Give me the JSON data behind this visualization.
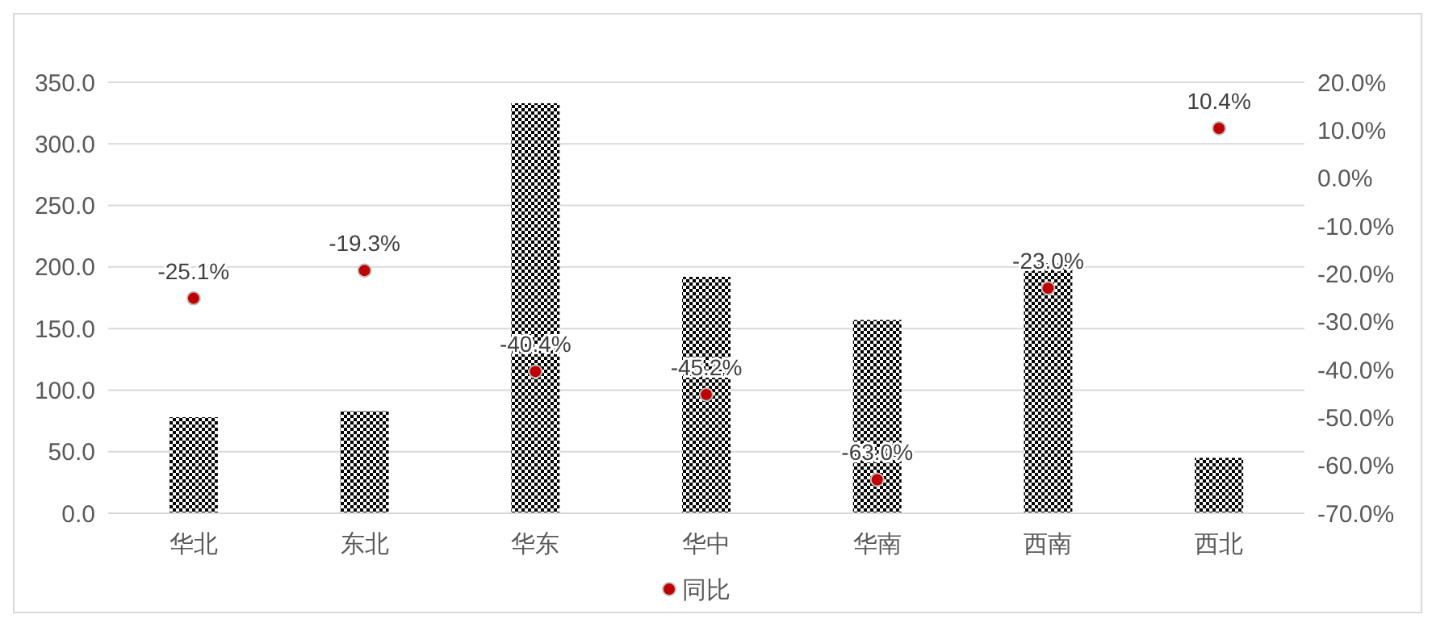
{
  "chart_data": {
    "type": "bar",
    "categories": [
      "华北",
      "东北",
      "华东",
      "华中",
      "华南",
      "西南",
      "西北"
    ],
    "series": [
      {
        "color": "#000000",
        "values": [
          78,
          83,
          333,
          192,
          157,
          203,
          45
        ]
      },
      {
        "type": "scatter",
        "name": "同比",
        "color": "#c00000",
        "axis": "y2",
        "values": [
          -25.1,
          -19.3,
          -40.4,
          -45.2,
          -63.0,
          -23.0,
          10.4
        ],
        "value_labels": [
          "-25.1%",
          "-19.3%",
          "-40.4%",
          "-45.2%",
          "-63.0%",
          "-23.0%",
          "10.4%"
        ]
      }
    ],
    "ylim": [
      0,
      350
    ],
    "yticks": [
      {
        "value": 0,
        "label": "0.0"
      },
      {
        "value": 50,
        "label": "50.0"
      },
      {
        "value": 100,
        "label": "100.0"
      },
      {
        "value": 150,
        "label": "150.0"
      },
      {
        "value": 200,
        "label": "200.0"
      },
      {
        "value": 250,
        "label": "250.0"
      },
      {
        "value": 300,
        "label": "300.0"
      },
      {
        "value": 350,
        "label": "350.0"
      }
    ],
    "y2lim": [
      -70,
      20
    ],
    "y2ticks": [
      {
        "value": -70,
        "label": "-70.0%"
      },
      {
        "value": -60,
        "label": "-60.0%"
      },
      {
        "value": -50,
        "label": "-50.0%"
      },
      {
        "value": -40,
        "label": "-40.0%"
      },
      {
        "value": -30,
        "label": "-30.0%"
      },
      {
        "value": -20,
        "label": "-20.0%"
      },
      {
        "value": -10,
        "label": "-10.0%"
      },
      {
        "value": 0,
        "label": "0.0%"
      },
      {
        "value": 10,
        "label": "10.0%"
      },
      {
        "value": 20,
        "label": "20.0%"
      }
    ],
    "grid": "y",
    "legend": "bottom",
    "marker": "circle"
  }
}
